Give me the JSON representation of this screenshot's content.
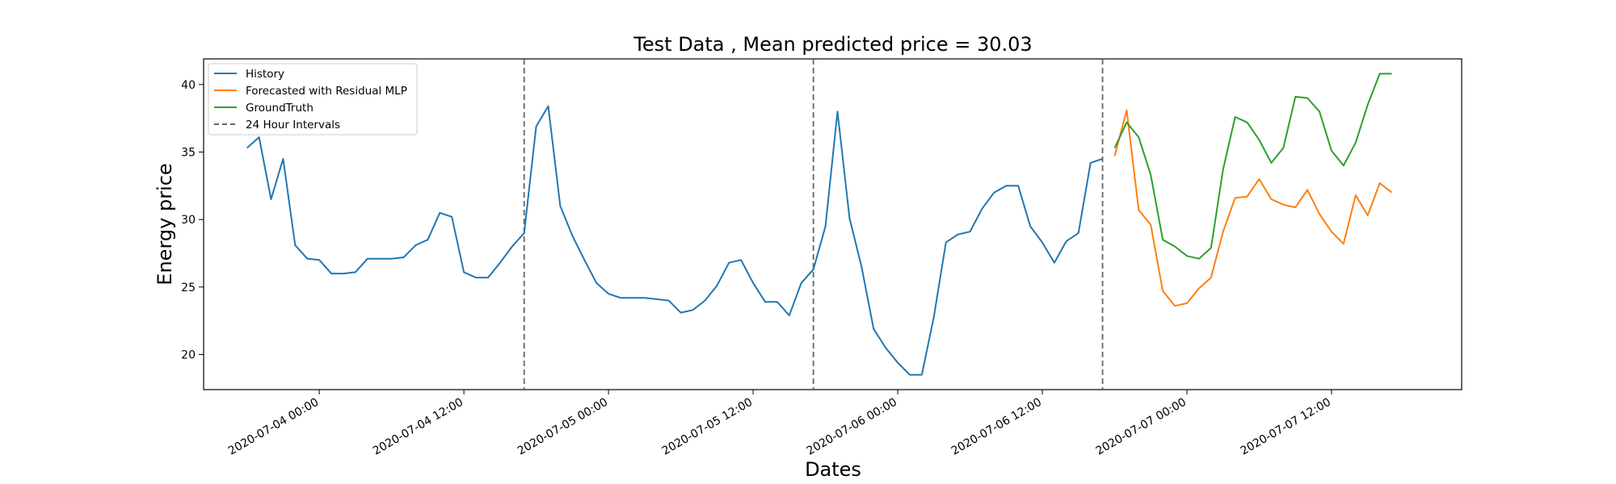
{
  "chart_data": {
    "type": "line",
    "title": "Test Data , Mean predicted price = 30.03",
    "xlabel": "Dates",
    "ylabel": "Energy price",
    "x_unit": "hours",
    "xlim_hours": [
      -9.6,
      94.8
    ],
    "ylim": [
      17.4,
      41.9
    ],
    "grid": false,
    "legend_position": "top-left",
    "x_ticks": [
      {
        "hours": 0,
        "label": "2020-07-04 00:00"
      },
      {
        "hours": 12,
        "label": "2020-07-04 12:00"
      },
      {
        "hours": 24,
        "label": "2020-07-05 00:00"
      },
      {
        "hours": 36,
        "label": "2020-07-05 12:00"
      },
      {
        "hours": 48,
        "label": "2020-07-06 00:00"
      },
      {
        "hours": 60,
        "label": "2020-07-06 12:00"
      },
      {
        "hours": 72,
        "label": "2020-07-07 00:00"
      },
      {
        "hours": 84,
        "label": "2020-07-07 12:00"
      }
    ],
    "y_ticks": [
      20,
      25,
      30,
      35,
      40
    ],
    "vlines": [
      17,
      41,
      65
    ],
    "series": [
      {
        "name": "History",
        "color": "#1f77b4",
        "style": "solid",
        "x_start": -6,
        "values": [
          35.3,
          36.1,
          31.5,
          34.5,
          28.1,
          27.1,
          27.0,
          26.0,
          26.0,
          26.1,
          27.1,
          27.1,
          27.1,
          27.2,
          28.1,
          28.5,
          30.5,
          30.2,
          26.1,
          25.7,
          25.7,
          26.8,
          28.0,
          29.0,
          36.9,
          38.4,
          31.0,
          28.8,
          27.0,
          25.3,
          24.5,
          24.2,
          24.2,
          24.2,
          24.1,
          24.0,
          23.1,
          23.3,
          24.0,
          25.1,
          26.8,
          27.0,
          25.3,
          23.9,
          23.9,
          22.9,
          25.3,
          26.3,
          29.5,
          38.0,
          30.1,
          26.5,
          21.9,
          20.5,
          19.4,
          18.5,
          18.5,
          22.8,
          28.3,
          28.9,
          29.1,
          30.8,
          32.0,
          32.5,
          32.5,
          29.5,
          28.3,
          26.8,
          28.4,
          29.0,
          34.2,
          34.5
        ]
      },
      {
        "name": "Forecasted with Residual MLP",
        "color": "#ff7f0e",
        "style": "solid",
        "x_start": 66,
        "values": [
          34.7,
          38.1,
          30.7,
          29.6,
          24.7,
          23.6,
          23.8,
          24.9,
          25.7,
          29.1,
          31.6,
          31.7,
          33.0,
          31.5,
          31.1,
          30.9,
          32.2,
          30.4,
          29.1,
          28.2,
          31.8,
          30.3,
          32.7,
          32.0
        ]
      },
      {
        "name": "GroundTruth",
        "color": "#2ca02c",
        "style": "solid",
        "x_start": 66,
        "values": [
          35.3,
          37.2,
          36.1,
          33.3,
          28.5,
          28.0,
          27.3,
          27.1,
          27.9,
          33.7,
          37.6,
          37.2,
          35.9,
          34.2,
          35.3,
          39.1,
          39.0,
          38.0,
          35.1,
          34.0,
          35.7,
          38.5,
          40.8,
          40.8
        ]
      }
    ],
    "legend": [
      {
        "label": "History",
        "color": "#1f77b4",
        "style": "solid"
      },
      {
        "label": "Forecasted with Residual MLP",
        "color": "#ff7f0e",
        "style": "solid"
      },
      {
        "label": "GroundTruth",
        "color": "#2ca02c",
        "style": "solid"
      },
      {
        "label": "24 Hour Intervals",
        "color": "#666666",
        "style": "dashed"
      }
    ]
  }
}
